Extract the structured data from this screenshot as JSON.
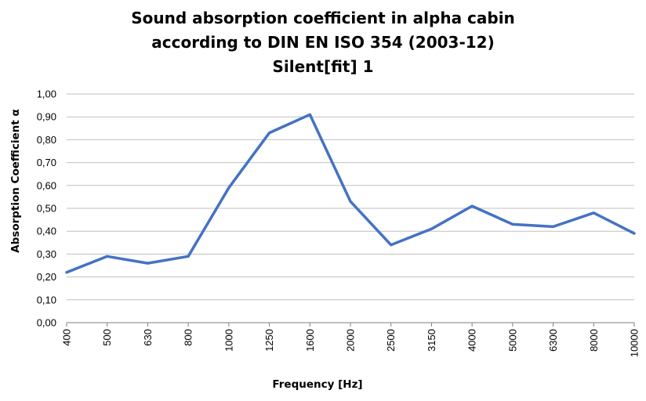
{
  "title": {
    "line1": "Sound absorption coefficient in alpha cabin",
    "line2": "according to DIN EN ISO 354 (2003-12)",
    "line3": "Silent[fit] 1"
  },
  "chart_data": {
    "type": "line",
    "title": "Sound absorption coefficient in alpha cabin according to DIN EN ISO 354 (2003-12) Silent[fit] 1",
    "xlabel": "Frequency [Hz]",
    "ylabel": "Absorption Coefficient α",
    "categories": [
      "400",
      "500",
      "630",
      "800",
      "1000",
      "1250",
      "1600",
      "2000",
      "2500",
      "3150",
      "4000",
      "5000",
      "6300",
      "8000",
      "10000"
    ],
    "series": [
      {
        "values": [
          0.22,
          0.29,
          0.26,
          0.29,
          0.59,
          0.83,
          0.91,
          0.53,
          0.34,
          0.41,
          0.51,
          0.43,
          0.42,
          0.48,
          0.39
        ],
        "color": "#4472C4"
      }
    ],
    "ylim": [
      0,
      1
    ],
    "yticks": [
      "0,00",
      "0,10",
      "0,20",
      "0,30",
      "0,40",
      "0,50",
      "0,60",
      "0,70",
      "0,80",
      "0,90",
      "1,00"
    ],
    "grid": true,
    "legend": "none",
    "gridColor": "#BFBFBF",
    "axisColor": "#7F7F7F"
  }
}
